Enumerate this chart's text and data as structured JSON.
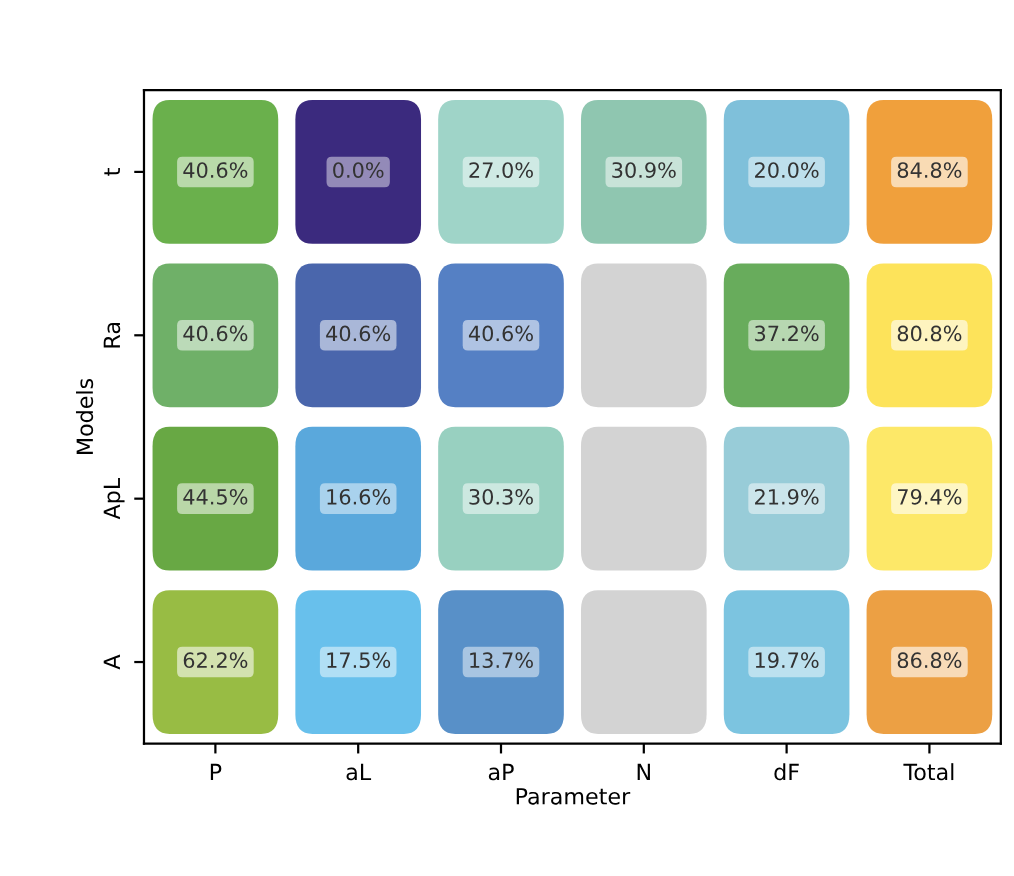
{
  "chart_data": {
    "type": "heatmap",
    "xlabel": "Parameter",
    "ylabel": "Models",
    "categories": [
      "P",
      "aL",
      "aP",
      "N",
      "dF",
      "Total"
    ],
    "y_categories": [
      "t",
      "Ra",
      "ApL",
      "A"
    ],
    "cells": [
      [
        40.6,
        0.0,
        27.0,
        30.9,
        20.0,
        84.8
      ],
      [
        40.6,
        40.6,
        40.6,
        null,
        37.2,
        80.8
      ],
      [
        44.5,
        16.6,
        30.3,
        null,
        21.9,
        79.4
      ],
      [
        62.2,
        17.5,
        13.7,
        null,
        19.7,
        86.8
      ]
    ],
    "cell_labels": [
      [
        "40.6%",
        "0.0%",
        "27.0%",
        "30.9%",
        "20.0%",
        "84.8%"
      ],
      [
        "40.6%",
        "40.6%",
        "40.6%",
        null,
        "37.2%",
        "80.8%"
      ],
      [
        "44.5%",
        "16.6%",
        "30.3%",
        null,
        "21.9%",
        "79.4%"
      ],
      [
        "62.2%",
        "17.5%",
        "13.7%",
        null,
        "19.7%",
        "86.8%"
      ]
    ],
    "colors": [
      [
        "#6ab04c",
        "#3b2a7e",
        "#9fd4c8",
        "#8fc6b0",
        "#7fc0da",
        "#f0a03c"
      ],
      [
        "#6fb068",
        "#4a66ac",
        "#5580c4",
        "#d3d3d3",
        "#68ac5c",
        "#fde35a"
      ],
      [
        "#68a844",
        "#5aa8dc",
        "#98d0c0",
        "#d3d3d3",
        "#98ccd8",
        "#fde868"
      ],
      [
        "#98bc44",
        "#68c0ec",
        "#5890c8",
        "#d3d3d3",
        "#7cc4e0",
        "#eca044"
      ]
    ]
  }
}
